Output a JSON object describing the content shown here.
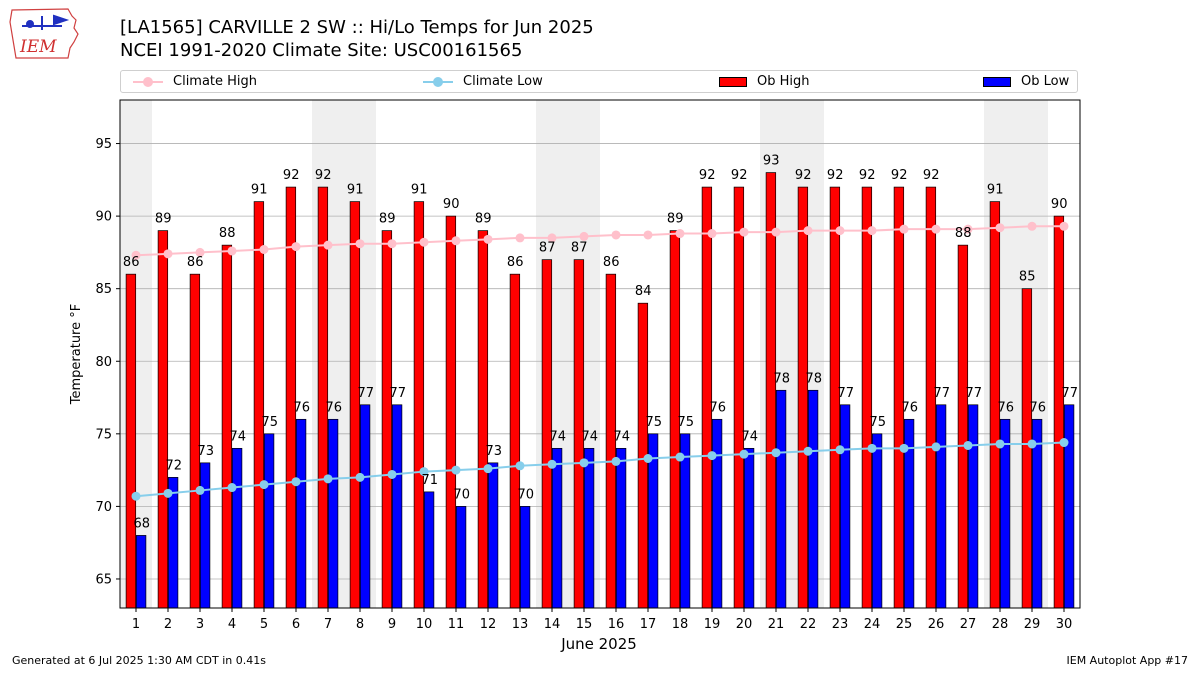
{
  "header": {
    "logo_text": "IEM",
    "title_line1": "[LA1565] CARVILLE 2 SW :: Hi/Lo Temps for Jun 2025",
    "title_line2": "NCEI 1991-2020 Climate Site: USC00161565"
  },
  "footer": {
    "generated": "Generated at 6 Jul 2025 1:30 AM CDT in 0.41s",
    "app": "IEM Autoplot App #17"
  },
  "colors": {
    "ob_high": "#ff0000",
    "ob_low": "#0000ff",
    "climate_high": "#ffc0cb",
    "climate_low": "#87ceeb",
    "week_shade": "#efefef",
    "grid": "#b0b0b0"
  },
  "chart_data": {
    "type": "bar",
    "xlabel": "June 2025",
    "ylabel": "Temperature °F",
    "ylim": [
      63,
      98
    ],
    "yticks": [
      65,
      70,
      75,
      80,
      85,
      90,
      95
    ],
    "grid": "horizontal",
    "legend_placement": "top",
    "shaded_days": [
      1,
      7,
      8,
      14,
      15,
      21,
      22,
      28,
      29
    ],
    "categories": [
      "1",
      "2",
      "3",
      "4",
      "5",
      "6",
      "7",
      "8",
      "9",
      "10",
      "11",
      "12",
      "13",
      "14",
      "15",
      "16",
      "17",
      "18",
      "19",
      "20",
      "21",
      "22",
      "23",
      "24",
      "25",
      "26",
      "27",
      "28",
      "29",
      "30"
    ],
    "series": [
      {
        "name": "Ob High",
        "kind": "bar",
        "values": [
          86,
          89,
          86,
          88,
          91,
          92,
          92,
          91,
          89,
          91,
          90,
          89,
          86,
          87,
          87,
          86,
          84,
          89,
          92,
          92,
          93,
          92,
          92,
          92,
          92,
          92,
          88,
          91,
          85,
          90
        ]
      },
      {
        "name": "Ob Low",
        "kind": "bar",
        "values": [
          68,
          72,
          73,
          74,
          75,
          76,
          76,
          77,
          77,
          71,
          70,
          73,
          70,
          74,
          74,
          74,
          75,
          75,
          76,
          74,
          78,
          78,
          77,
          75,
          76,
          77,
          77,
          76,
          76,
          77
        ]
      },
      {
        "name": "Climate High",
        "kind": "line",
        "values": [
          87.3,
          87.4,
          87.5,
          87.6,
          87.7,
          87.9,
          88.0,
          88.1,
          88.1,
          88.2,
          88.3,
          88.4,
          88.5,
          88.5,
          88.6,
          88.7,
          88.7,
          88.8,
          88.8,
          88.9,
          88.9,
          89.0,
          89.0,
          89.0,
          89.1,
          89.1,
          89.1,
          89.2,
          89.3,
          89.3
        ]
      },
      {
        "name": "Climate Low",
        "kind": "line",
        "values": [
          70.7,
          70.9,
          71.1,
          71.3,
          71.5,
          71.7,
          71.9,
          72.0,
          72.2,
          72.4,
          72.5,
          72.6,
          72.8,
          72.9,
          73.0,
          73.1,
          73.3,
          73.4,
          73.5,
          73.6,
          73.7,
          73.8,
          73.9,
          74.0,
          74.0,
          74.1,
          74.2,
          74.3,
          74.3,
          74.4
        ]
      }
    ]
  }
}
